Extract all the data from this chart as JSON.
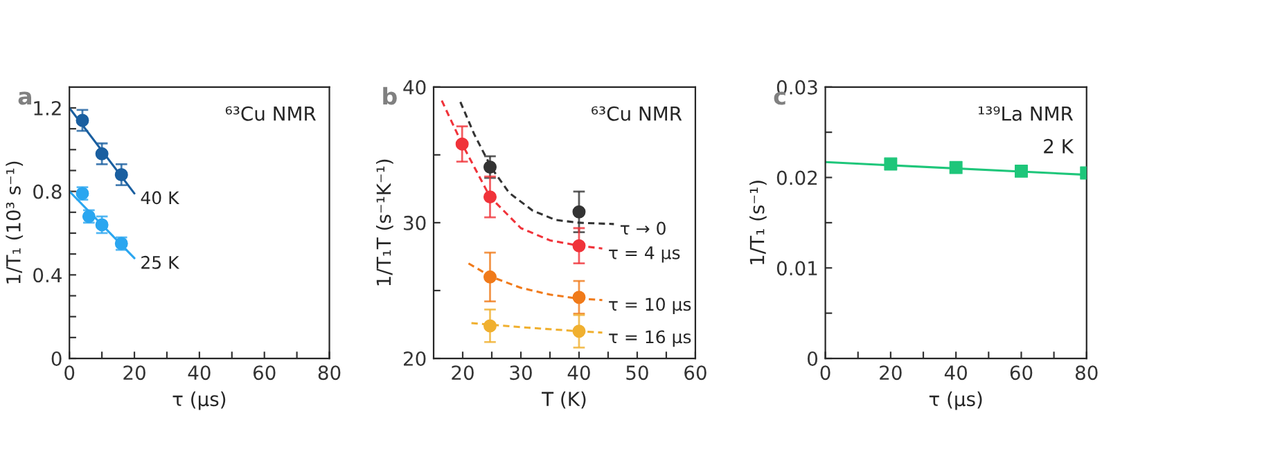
{
  "chart_data": [
    {
      "type": "scatter",
      "xlabel": "τ (μs)",
      "ylabel": "1/T₁ (10³ s⁻¹)",
      "xlim": [
        0,
        80
      ],
      "ylim": [
        0,
        1.3
      ],
      "xticks": [
        0,
        {
          "value": 10,
          "label": null
        },
        20,
        {
          "value": 30,
          "label": null
        },
        40,
        {
          "value": 50,
          "label": null
        },
        60,
        {
          "value": 70,
          "label": null
        },
        80
      ],
      "yticks": [
        0,
        {
          "value": 0.1,
          "label": null
        },
        {
          "value": 0.2,
          "label": null
        },
        {
          "value": 0.3,
          "label": null
        },
        0.4,
        {
          "value": 0.5,
          "label": null
        },
        {
          "value": 0.6,
          "label": null
        },
        {
          "value": 0.7,
          "label": null
        },
        0.8,
        {
          "value": 0.9,
          "label": null
        },
        {
          "value": 1.0,
          "label": null
        },
        {
          "value": 1.1,
          "label": null
        },
        1.2
      ],
      "marker": "circle",
      "grid": false,
      "series": [
        {
          "color": "#1a5fa0",
          "x": [
            4,
            10,
            16
          ],
          "values": [
            1.14,
            0.98,
            0.88
          ],
          "errors": [
            0.05,
            0.05,
            0.05
          ]
        },
        {
          "type": "line",
          "color": "#1a5fa0",
          "x": [
            0,
            20
          ],
          "values": [
            1.2,
            0.79
          ],
          "line_style": "solid",
          "marker": "none"
        },
        {
          "color": "#2aa6f0",
          "x": [
            4,
            6,
            10,
            16
          ],
          "values": [
            0.79,
            0.68,
            0.64,
            0.55
          ],
          "errors": [
            0.03,
            0.03,
            0.04,
            0.03
          ]
        },
        {
          "type": "line",
          "color": "#2aa6f0",
          "x": [
            0,
            20
          ],
          "values": [
            0.8,
            0.48
          ],
          "line_style": "solid",
          "marker": "none"
        }
      ],
      "annotations": [
        "a",
        "⁶³Cu NMR",
        {
          "text": "40 K",
          "x": 20,
          "y": 0.79
        },
        {
          "text": "25 K",
          "x": 20,
          "y": 0.48
        }
      ]
    },
    {
      "type": "scatter",
      "xlabel": "T (K)",
      "ylabel": "1/T₁T (s⁻¹K⁻¹)",
      "xlim": [
        15,
        60
      ],
      "ylim": [
        20,
        40
      ],
      "xticks": [
        20,
        {
          "value": 25,
          "label": null
        },
        30,
        {
          "value": 35,
          "label": null
        },
        40,
        {
          "value": 45,
          "label": null
        },
        50,
        {
          "value": 55,
          "label": null
        },
        60
      ],
      "yticks": [
        20,
        {
          "value": 25,
          "label": null
        },
        30,
        {
          "value": 35,
          "label": null
        },
        40
      ],
      "marker": "circle",
      "grid": false,
      "series": [
        {
          "color": "#333333",
          "x": [
            24.7,
            40
          ],
          "values": [
            34.1,
            30.8
          ],
          "errors": [
            0.8,
            1.5
          ]
        },
        {
          "type": "line",
          "color": "#333333",
          "x": [
            19.6,
            22,
            25,
            28,
            32,
            36,
            40,
            46
          ],
          "values": [
            38.9,
            36.5,
            34.0,
            32.2,
            30.9,
            30.2,
            30.0,
            29.9
          ],
          "line_style": "dashed",
          "marker": "none"
        },
        {
          "color": "#f0333a",
          "x": [
            19.9,
            24.7,
            40
          ],
          "values": [
            35.8,
            31.9,
            28.3
          ],
          "errors": [
            1.3,
            1.5,
            1.3
          ]
        },
        {
          "type": "line",
          "color": "#f0333a",
          "x": [
            16.4,
            19.9,
            24.7,
            30,
            35,
            40,
            44
          ],
          "values": [
            39.0,
            35.8,
            31.9,
            29.6,
            28.7,
            28.3,
            28.1
          ],
          "line_style": "dashed",
          "marker": "none"
        },
        {
          "color": "#f07a1a",
          "x": [
            24.7,
            40
          ],
          "values": [
            26.0,
            24.5
          ],
          "errors": [
            1.8,
            1.2
          ]
        },
        {
          "type": "line",
          "color": "#f07a1a",
          "x": [
            21,
            25,
            30,
            35,
            40,
            44
          ],
          "values": [
            27.0,
            26.0,
            25.2,
            24.7,
            24.4,
            24.3
          ],
          "line_style": "dashed",
          "marker": "none"
        },
        {
          "color": "#f0b030",
          "x": [
            24.7,
            40
          ],
          "values": [
            22.4,
            22.0
          ],
          "errors": [
            1.2,
            1.2
          ]
        },
        {
          "type": "line",
          "color": "#f0b030",
          "x": [
            21.5,
            30,
            40,
            44
          ],
          "values": [
            22.6,
            22.3,
            22.0,
            21.9
          ],
          "line_style": "dashed",
          "marker": "none"
        }
      ],
      "annotations": [
        "b",
        "⁶³Cu NMR",
        {
          "text": "τ → 0",
          "x": 46,
          "y": 29.9
        },
        {
          "text": "τ = 4 μs",
          "x": 44,
          "y": 28.1
        },
        {
          "text": "τ = 10 μs",
          "x": 44,
          "y": 24.3
        },
        {
          "text": "τ = 16 μs",
          "x": 44,
          "y": 21.9
        }
      ]
    },
    {
      "type": "scatter",
      "xlabel": "τ (μs)",
      "ylabel": "1/T₁ (s⁻¹)",
      "xlim": [
        0,
        80
      ],
      "ylim": [
        0,
        0.03
      ],
      "xticks": [
        0,
        {
          "value": 10,
          "label": null
        },
        20,
        {
          "value": 30,
          "label": null
        },
        40,
        {
          "value": 50,
          "label": null
        },
        60,
        {
          "value": 70,
          "label": null
        },
        80
      ],
      "yticks": [
        0,
        {
          "value": 0.005,
          "label": null
        },
        0.01,
        {
          "value": 0.015,
          "label": null
        },
        0.02,
        {
          "value": 0.025,
          "label": null
        },
        0.03
      ],
      "marker": "square",
      "grid": false,
      "series": [
        {
          "color": "#1ec67a",
          "x": [
            20,
            40,
            60,
            80
          ],
          "values": [
            0.0215,
            0.0211,
            0.0207,
            0.0205
          ]
        },
        {
          "type": "line",
          "color": "#1ec67a",
          "x": [
            0,
            80
          ],
          "values": [
            0.0217,
            0.0203
          ],
          "line_style": "solid",
          "marker": "none"
        }
      ],
      "annotations": [
        "c",
        "¹³⁹La NMR",
        "2 K"
      ]
    }
  ]
}
